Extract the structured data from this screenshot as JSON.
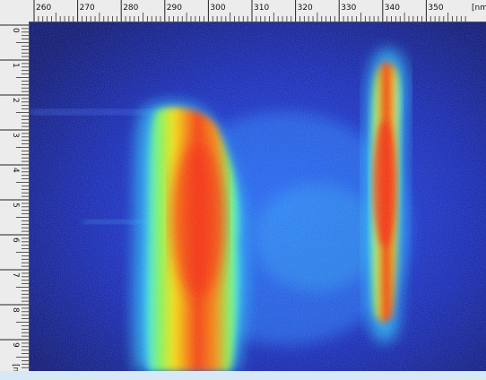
{
  "x_axis": {
    "ticks": [
      "260",
      "270",
      "280",
      "290",
      "300",
      "310",
      "320",
      "330",
      "340",
      "350"
    ],
    "unit_label": "[nm"
  },
  "y_axis": {
    "ticks": [
      "0",
      "1",
      "2",
      "3",
      "4",
      "5",
      "6",
      "7",
      "8",
      "9"
    ],
    "unit_label": "[ns]"
  },
  "colors": {
    "background": "#000a6e",
    "low": "#0f2cff",
    "mid": "#2fe8ff",
    "high": "#ffe700",
    "peak": "#ff1a00"
  },
  "image": "streak-camera-intensity-map"
}
